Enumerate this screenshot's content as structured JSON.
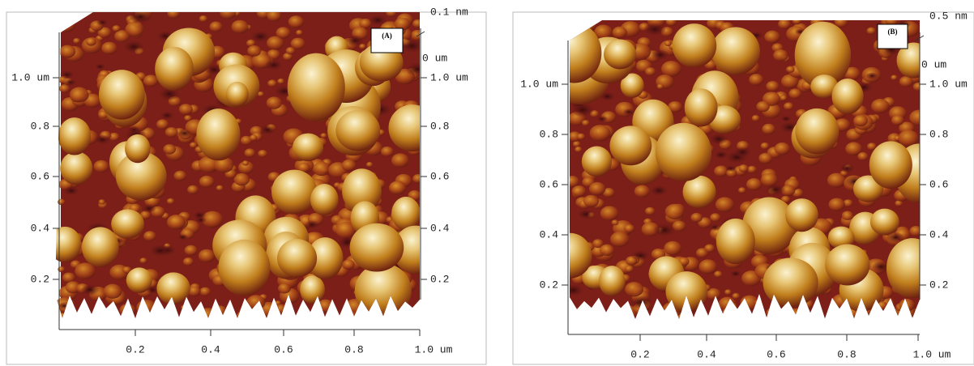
{
  "panels": [
    {
      "label": "(A)",
      "z_max": "0.1 nm",
      "z_origin": "0 um",
      "left_ticks": [
        "1.0 um",
        "0.8",
        "0.6",
        "0.4",
        "0.2"
      ],
      "right_ticks": [
        "1.0 um",
        "0.8",
        "0.6",
        "0.4",
        "0.2"
      ],
      "bottom_ticks": [
        "0.2",
        "0.4",
        "0.6",
        "0.8",
        "1.0 um"
      ]
    },
    {
      "label": "(B)",
      "z_max": "0.5 nm",
      "z_origin": "0 um",
      "left_ticks": [
        "1.0 um",
        "0.8",
        "0.6",
        "0.4",
        "0.2"
      ],
      "right_ticks": [
        "1.0 um",
        "0.8",
        "0.6",
        "0.4",
        "0.2"
      ],
      "bottom_ticks": [
        "0.2",
        "0.4",
        "0.6",
        "0.8",
        "1.0 um"
      ]
    }
  ]
}
